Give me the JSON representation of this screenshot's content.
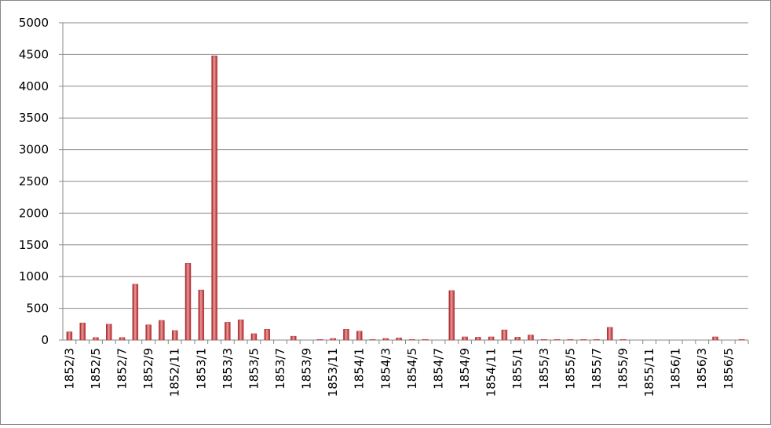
{
  "chart_data": {
    "type": "bar",
    "categories": [
      "1852/3",
      null,
      "1852/5",
      null,
      "1852/7",
      null,
      "1852/9",
      null,
      "1852/11",
      null,
      "1853/1",
      null,
      "1853/3",
      null,
      "1853/5",
      null,
      "1853/7",
      null,
      "1853/9",
      null,
      "1853/11",
      null,
      "1854/1",
      null,
      "1854/3",
      null,
      "1854/5",
      null,
      "1854/7",
      null,
      "1854/9",
      null,
      "1854/11",
      null,
      "1855/1",
      null,
      "1855/3",
      null,
      "1855/5",
      null,
      "1855/7",
      null,
      "1855/9",
      null,
      "1855/11",
      null,
      "1856/1",
      null,
      "1856/3",
      null,
      "1856/5",
      null
    ],
    "values": [
      130,
      270,
      40,
      250,
      40,
      880,
      240,
      310,
      150,
      1210,
      790,
      4480,
      280,
      320,
      100,
      170,
      0,
      60,
      0,
      10,
      25,
      170,
      140,
      10,
      25,
      35,
      10,
      10,
      0,
      780,
      50,
      45,
      50,
      160,
      45,
      80,
      10,
      10,
      10,
      10,
      10,
      200,
      10,
      0,
      0,
      0,
      0,
      0,
      0,
      50,
      0,
      10
    ],
    "color": "#c0393b",
    "ylim": [
      0,
      5000
    ],
    "yticks": [
      0,
      500,
      1000,
      1500,
      2000,
      2500,
      3000,
      3500,
      4000,
      4500,
      5000
    ],
    "grid": true
  }
}
